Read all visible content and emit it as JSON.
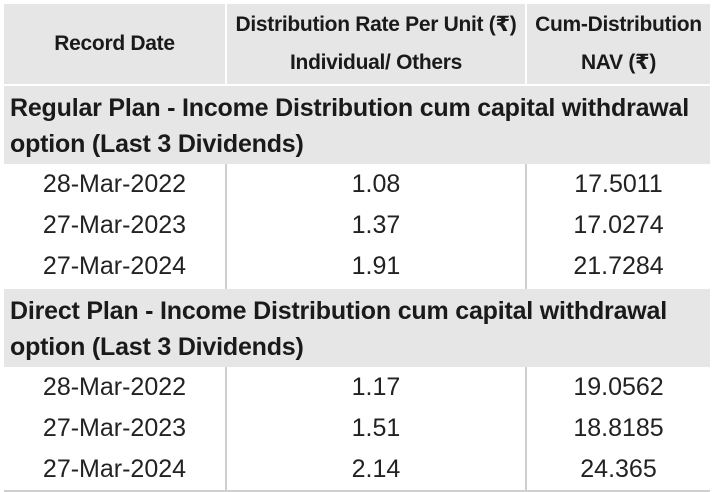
{
  "header": {
    "record_date": "Record Date",
    "rate_line1": "Distribution Rate Per Unit  (₹)",
    "rate_line2": "Individual/ Others",
    "nav_line1": "Cum-Distribution",
    "nav_line2": "NAV (₹)"
  },
  "sections": [
    {
      "title": "Regular Plan - Income Distribution cum capital withdrawal option (Last 3 Dividends)",
      "rows": [
        {
          "date": "28-Mar-2022",
          "rate": "1.08",
          "nav": "17.5011"
        },
        {
          "date": "27-Mar-2023",
          "rate": "1.37",
          "nav": "17.0274"
        },
        {
          "date": "27-Mar-2024",
          "rate": "1.91",
          "nav": "21.7284"
        }
      ]
    },
    {
      "title": "Direct Plan - Income Distribution cum capital withdrawal option (Last 3 Dividends)",
      "rows": [
        {
          "date": "28-Mar-2022",
          "rate": "1.17",
          "nav": "19.0562"
        },
        {
          "date": "27-Mar-2023",
          "rate": "1.51",
          "nav": "18.8185"
        },
        {
          "date": "27-Mar-2024",
          "rate": "2.14",
          "nav": "24.365"
        }
      ]
    }
  ]
}
